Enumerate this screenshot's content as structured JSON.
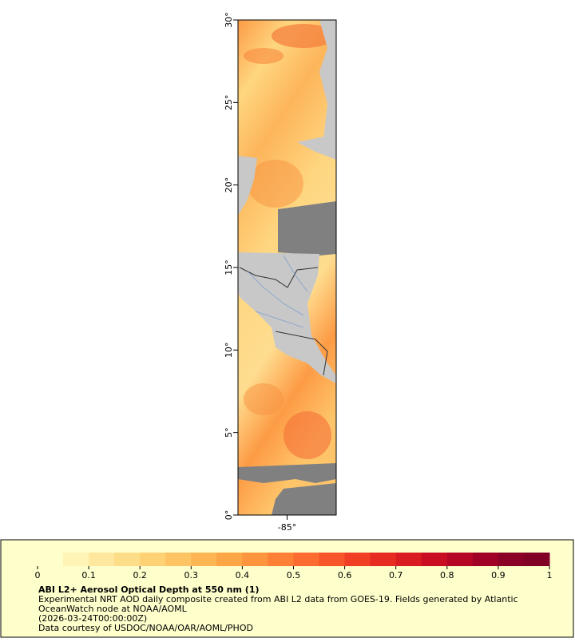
{
  "map": {
    "xlim": [
      -88,
      -82
    ],
    "ylim": [
      0,
      30
    ],
    "yticks": [
      {
        "value": 0,
        "label": "0°"
      },
      {
        "value": 5,
        "label": "5°"
      },
      {
        "value": 10,
        "label": "10°"
      },
      {
        "value": 15,
        "label": "15°"
      },
      {
        "value": 20,
        "label": "20°"
      },
      {
        "value": 25,
        "label": "25°"
      },
      {
        "value": 30,
        "label": "30°"
      }
    ],
    "xticks": [
      {
        "value": -85,
        "label": "-85°"
      }
    ]
  },
  "colorbar": {
    "range": [
      0,
      1
    ],
    "ticks": [
      0,
      0.1,
      0.2,
      0.3,
      0.4,
      0.5,
      0.6,
      0.7,
      0.8,
      0.9,
      1
    ],
    "colors": [
      "#ffffcc",
      "#fff3b5",
      "#ffe89e",
      "#fedd88",
      "#fed175",
      "#fec463",
      "#feb553",
      "#fea546",
      "#fd943e",
      "#fd8036",
      "#fc6b2f",
      "#f8552a",
      "#f03f25",
      "#e62b21",
      "#d91c22",
      "#c90e24",
      "#b50626",
      "#a00026",
      "#8a0026",
      "#800026"
    ]
  },
  "legend": {
    "title": "ABI L2+ Aerosol Optical Depth at 550 nm (1)",
    "lines": [
      "Experimental NRT AOD daily composite created from ABI L2 data from GOES-19. Fields generated by Atlantic",
      "OceanWatch node at NOAA/AOML",
      "(2026-03-24T00:00:00Z)",
      "Data courtesy of USDOC/NOAA/OAR/AOML/PHOD"
    ]
  }
}
